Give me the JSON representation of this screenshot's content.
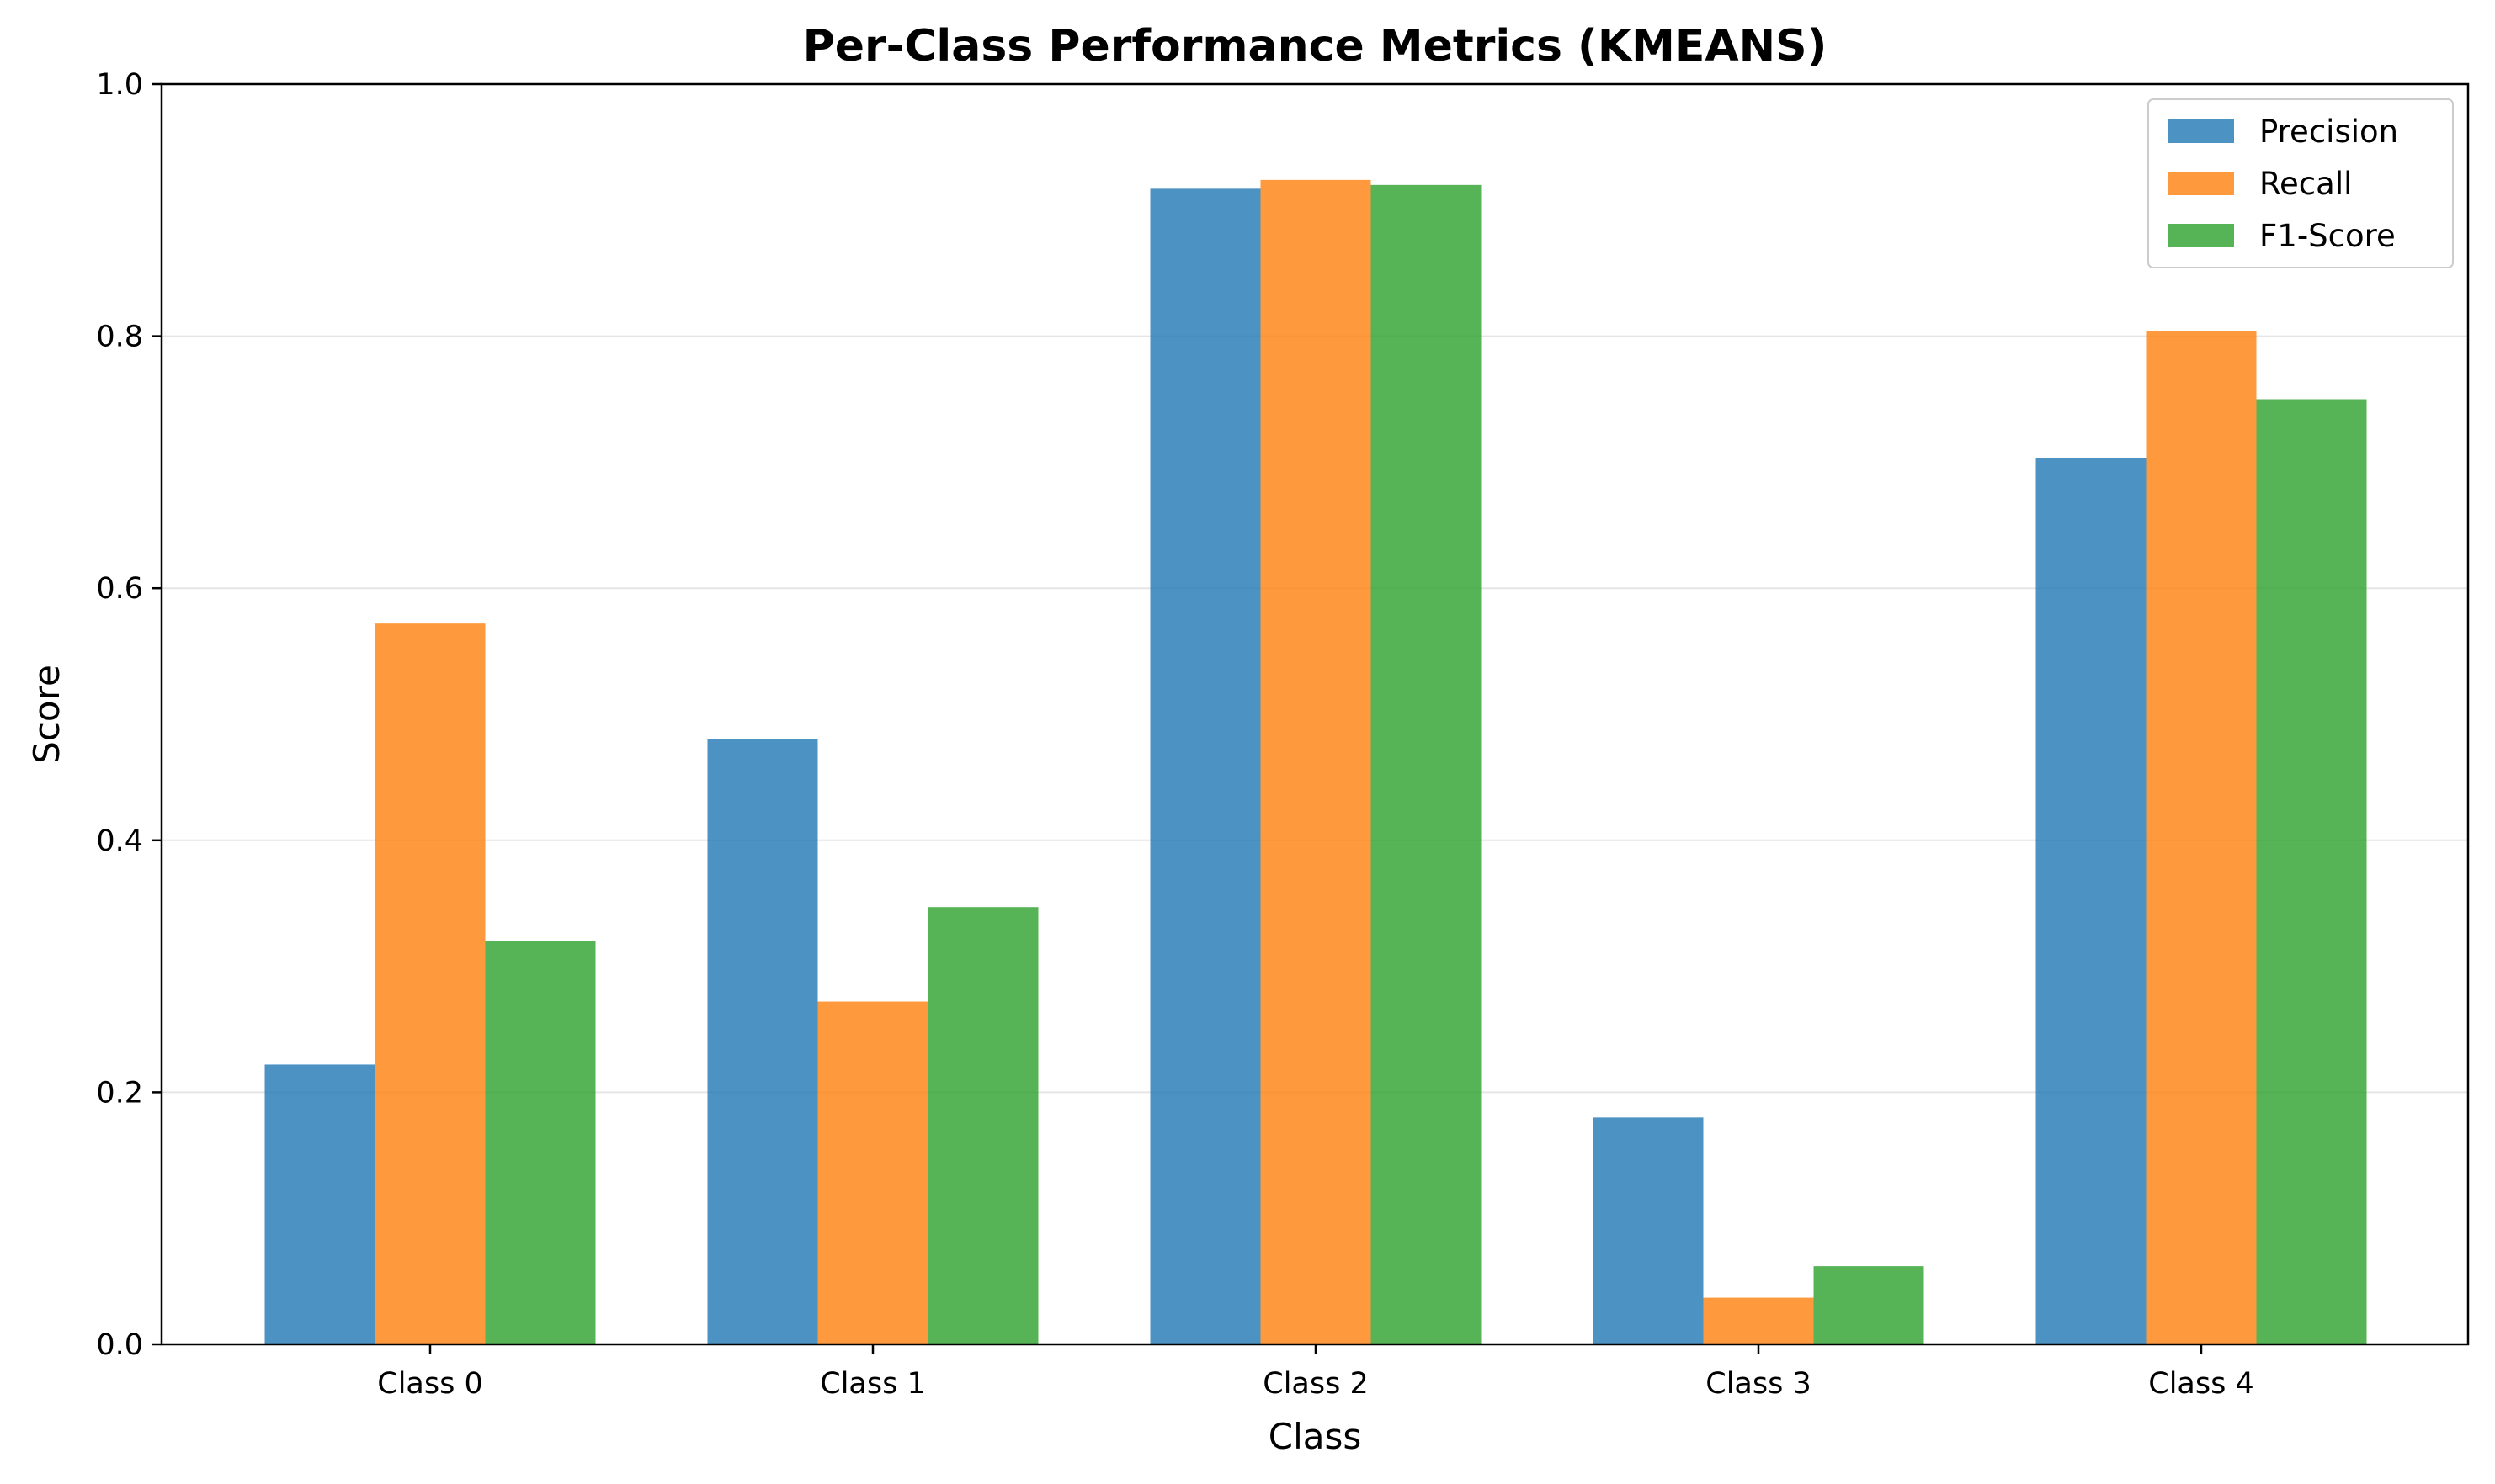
{
  "chart_data": {
    "type": "bar",
    "title": "Per-Class Performance Metrics (KMEANS)",
    "xlabel": "Class",
    "ylabel": "Score",
    "categories": [
      "Class 0",
      "Class 1",
      "Class 2",
      "Class 3",
      "Class 4"
    ],
    "series": [
      {
        "name": "Precision",
        "color": "#1f77b4",
        "values": [
          0.222,
          0.48,
          0.917,
          0.18,
          0.703
        ]
      },
      {
        "name": "Recall",
        "color": "#ff7f0e",
        "values": [
          0.572,
          0.272,
          0.924,
          0.037,
          0.804
        ]
      },
      {
        "name": "F1-Score",
        "color": "#2ca02c",
        "values": [
          0.32,
          0.347,
          0.92,
          0.062,
          0.75
        ]
      }
    ],
    "ylim": [
      0,
      1.0
    ],
    "yticks": [
      0.0,
      0.2,
      0.4,
      0.6,
      0.8,
      1.0
    ],
    "ytick_labels": [
      "0.0",
      "0.2",
      "0.4",
      "0.6",
      "0.8",
      "1.0"
    ],
    "grid": "y",
    "bar_alpha": 0.8,
    "legend_position": "top-right"
  }
}
